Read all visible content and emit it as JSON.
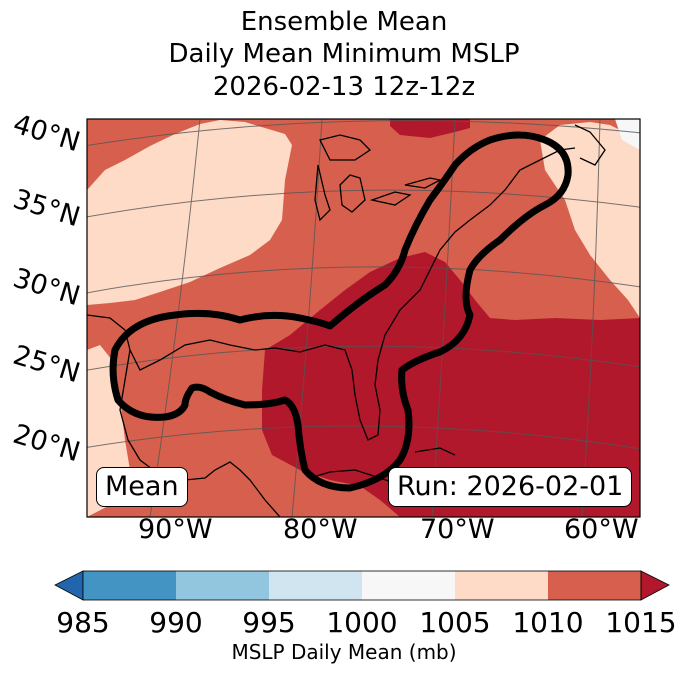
{
  "title": {
    "line1": "Ensemble Mean",
    "line2": "Daily Mean Minimum MSLP",
    "line3": "2026-02-13 12z-12z"
  },
  "map": {
    "lat_labels": [
      "40°N",
      "35°N",
      "30°N",
      "25°N",
      "20°N"
    ],
    "lon_labels": [
      "90°W",
      "80°W",
      "70°W",
      "60°W"
    ],
    "mean_badge": "Mean",
    "run_badge": "Run: 2026-02-01"
  },
  "colorbar": {
    "ticks": [
      "985",
      "990",
      "995",
      "1000",
      "1005",
      "1010",
      "1015"
    ],
    "label": "MSLP Daily Mean (mb)",
    "colors": [
      "#2166ac",
      "#4393c3",
      "#92c5de",
      "#d1e5f0",
      "#f7f7f7",
      "#fddbc7",
      "#d6604d",
      "#b2182b"
    ]
  },
  "fill_colors": {
    "1005-1010": "#fddbc7",
    "1010-1015": "#d6604d",
    ">1015": "#b2182b"
  }
}
